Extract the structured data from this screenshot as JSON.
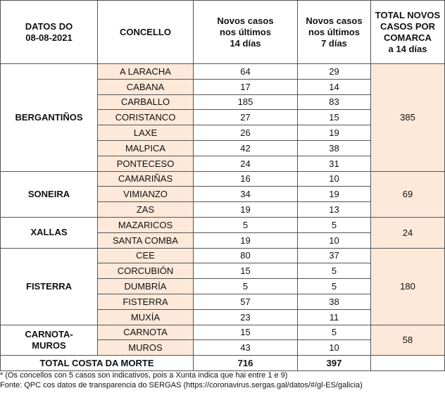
{
  "headers": {
    "date": "DATOS DO\n08-08-2021",
    "concello": "CONCELLO",
    "cases14": "Novos casos\nnos últimos\n14 días",
    "cases7": "Novos casos\nnos últimos\n7 días",
    "total": "TOTAL NOVOS\nCASOS POR\nCOMARCA\na 14 días"
  },
  "comarcas": [
    {
      "name": "BERGANTIÑOS",
      "total": "385",
      "rows": [
        {
          "concello": "A LARACHA",
          "c14": "64",
          "c7": "29"
        },
        {
          "concello": "CABANA",
          "c14": "17",
          "c7": "14"
        },
        {
          "concello": "CARBALLO",
          "c14": "185",
          "c7": "83"
        },
        {
          "concello": "CORISTANCO",
          "c14": "27",
          "c7": "15"
        },
        {
          "concello": "LAXE",
          "c14": "26",
          "c7": "19"
        },
        {
          "concello": "MALPICA",
          "c14": "42",
          "c7": "38"
        },
        {
          "concello": "PONTECESO",
          "c14": "24",
          "c7": "31"
        }
      ]
    },
    {
      "name": "SONEIRA",
      "total": "69",
      "rows": [
        {
          "concello": "CAMARIÑAS",
          "c14": "16",
          "c7": "10"
        },
        {
          "concello": "VIMIANZO",
          "c14": "34",
          "c7": "19"
        },
        {
          "concello": "ZAS",
          "c14": "19",
          "c7": "13"
        }
      ]
    },
    {
      "name": "XALLAS",
      "total": "24",
      "rows": [
        {
          "concello": "MAZARICOS",
          "c14": "5",
          "c7": "5"
        },
        {
          "concello": "SANTA COMBA",
          "c14": "19",
          "c7": "10"
        }
      ]
    },
    {
      "name": "FISTERRA",
      "total": "180",
      "rows": [
        {
          "concello": "CEE",
          "c14": "80",
          "c7": "37"
        },
        {
          "concello": "CORCUBIÓN",
          "c14": "15",
          "c7": "5"
        },
        {
          "concello": "DUMBRÍA",
          "c14": "5",
          "c7": "5"
        },
        {
          "concello": "FISTERRA",
          "c14": "57",
          "c7": "38"
        },
        {
          "concello": "MUXÍA",
          "c14": "23",
          "c7": "11"
        }
      ]
    },
    {
      "name": "CARNOTA-\nMUROS",
      "total": "58",
      "rows": [
        {
          "concello": "CARNOTA",
          "c14": "15",
          "c7": "5"
        },
        {
          "concello": "MUROS",
          "c14": "43",
          "c7": "10"
        }
      ]
    }
  ],
  "total_row": {
    "label": "TOTAL COSTA DA MORTE",
    "c14": "716",
    "c7": "397",
    "comarca": ""
  },
  "footnotes": [
    "* (Os concellos con 5 casos son indicativos, pois a Xunta indica que hai entre 1 e 9)",
    "Fonte: QPC cos datos de transparencia do SERGAS (https://coronavirus.sergas.gal/datos/#/gl-ES/galicia)"
  ],
  "colors": {
    "peach": "#fde9d9",
    "border": "#555555",
    "text": "#111111"
  }
}
